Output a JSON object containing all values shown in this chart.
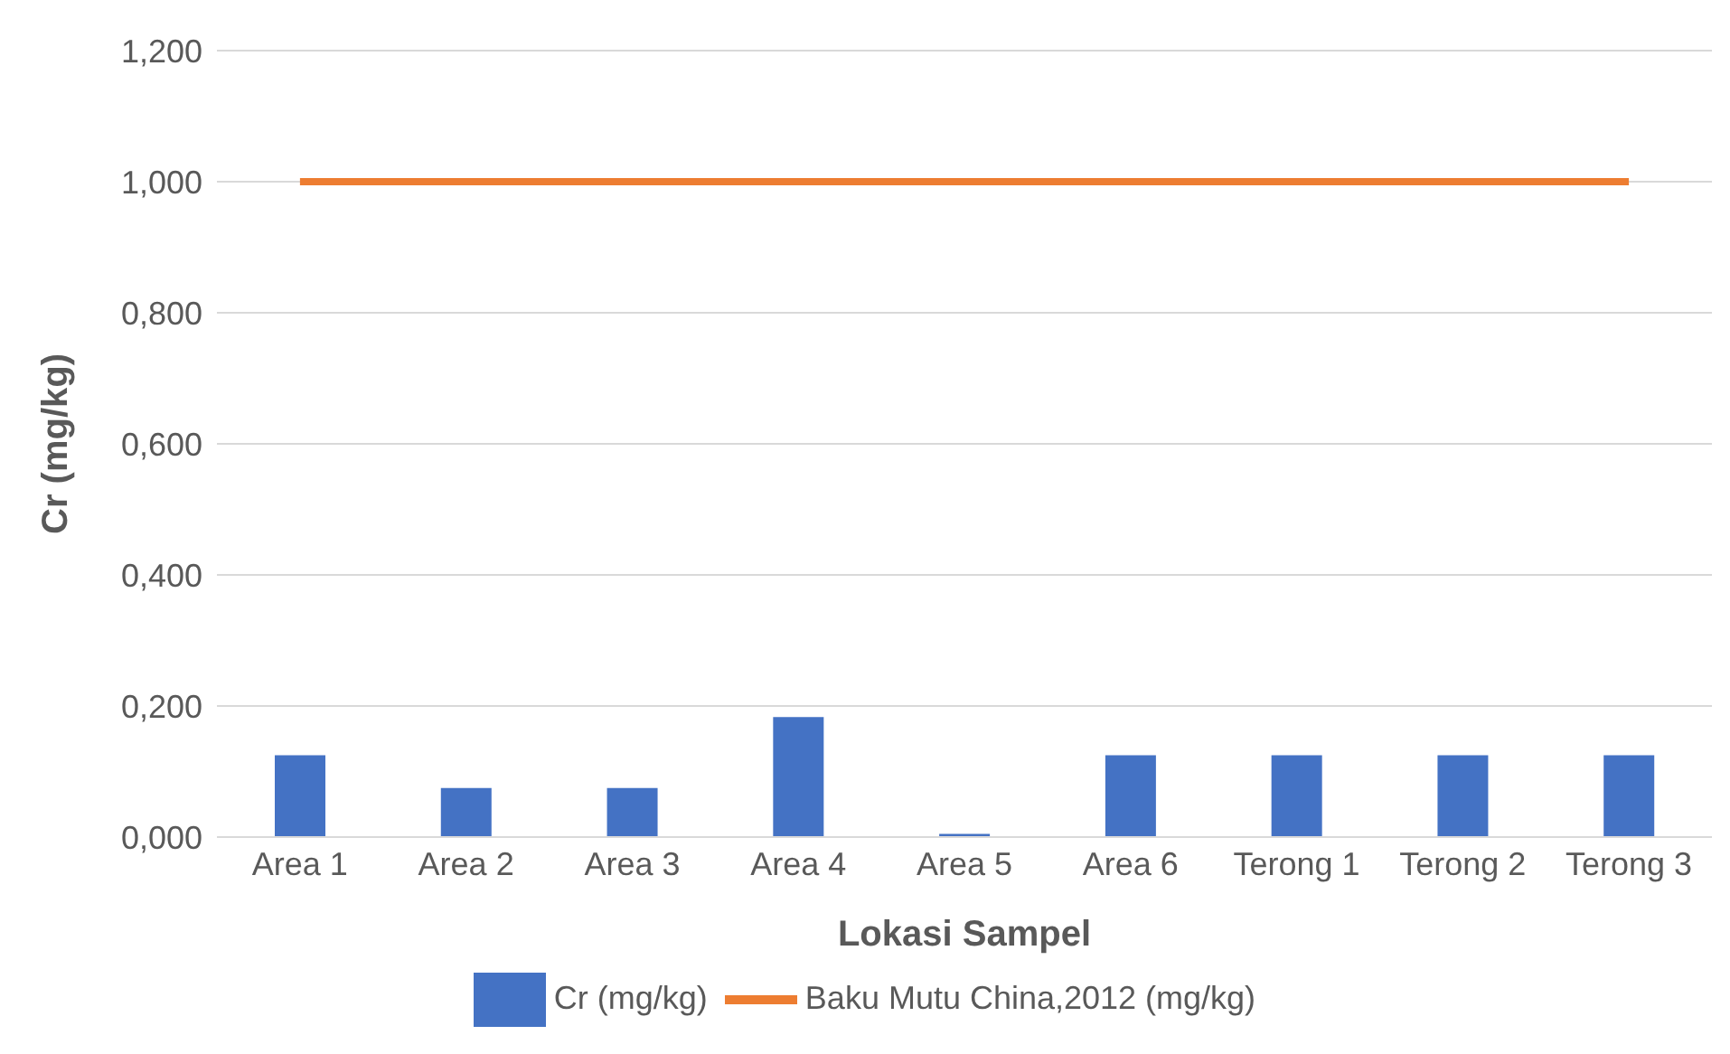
{
  "chart_data": {
    "type": "bar",
    "xlabel": "Lokasi Sampel",
    "ylabel": "Cr (mg/kg)",
    "categories": [
      "Area 1",
      "Area 2",
      "Area 3",
      "Area 4",
      "Area 5",
      "Area 6",
      "Terong 1",
      "Terong 2",
      "Terong 3"
    ],
    "series": [
      {
        "name": "Cr (mg/kg)",
        "color": "#4472c4",
        "values": [
          0.125,
          0.075,
          0.075,
          0.183,
          0.005,
          0.125,
          0.125,
          0.125,
          0.125
        ]
      },
      {
        "name": "Baku Mutu China,2012 (mg/kg)",
        "type": "line",
        "color": "#ed7d31",
        "values": [
          1,
          1,
          1,
          1,
          1,
          1,
          1,
          1,
          1
        ]
      }
    ],
    "ylim": [
      0,
      1.2
    ],
    "yticks": [
      {
        "value": 0,
        "label": "0,000"
      },
      {
        "value": 0.2,
        "label": "0,200"
      },
      {
        "value": 0.4,
        "label": "0,400"
      },
      {
        "value": 0.6,
        "label": "0,600"
      },
      {
        "value": 0.8,
        "label": "0,800"
      },
      {
        "value": 1,
        "label": "1,000"
      },
      {
        "value": 1.2,
        "label": "1,200"
      }
    ],
    "grid": "y",
    "legend": "bottom",
    "marker": "none"
  }
}
